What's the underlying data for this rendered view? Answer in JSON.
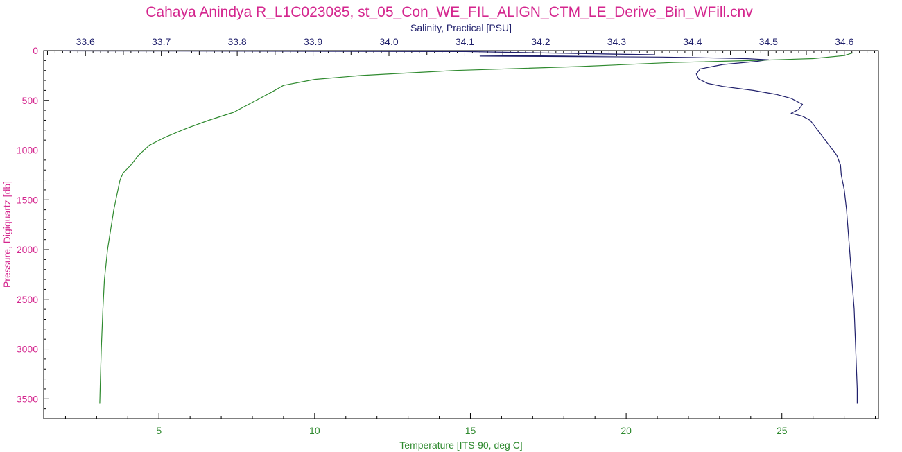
{
  "chart_data": {
    "type": "line",
    "title": "Cahaya Anindya R_L1C023085, st_05_Con_WE_FIL_ALIGN_CTM_LE_Derive_Bin_WFill.cnv",
    "colors": {
      "title": "#d4268e",
      "pressure": "#d4268e",
      "salinity": "#1f1f6b",
      "temperature": "#2f8a2f",
      "axis": "#000000"
    },
    "y_axis": {
      "label": "Pressure, Digiquartz [db]",
      "range": [
        0,
        3700
      ],
      "reversed": true,
      "ticks": [
        0,
        500,
        1000,
        1500,
        2000,
        2500,
        3000,
        3500
      ],
      "tick_labels": [
        "0",
        "500",
        "1000",
        "1500",
        "2000",
        "2500",
        "3000",
        "3500"
      ]
    },
    "x_top": {
      "label": "Salinity, Practical [PSU]",
      "range": [
        33.545,
        34.645
      ],
      "ticks": [
        33.6,
        33.7,
        33.8,
        33.9,
        34.0,
        34.1,
        34.2,
        34.3,
        34.4,
        34.5,
        34.6
      ],
      "tick_labels": [
        "33.6",
        "33.7",
        "33.8",
        "33.9",
        "34.0",
        "34.1",
        "34.2",
        "34.3",
        "34.4",
        "34.5",
        "34.6"
      ]
    },
    "x_bottom": {
      "label": "Temperature [ITS-90, deg C]",
      "range": [
        1.3,
        28.1
      ],
      "ticks": [
        5,
        10,
        15,
        20,
        25
      ],
      "tick_labels": [
        "5",
        "10",
        "15",
        "20",
        "25"
      ]
    },
    "grid": false,
    "series": [
      {
        "axis": "x_top",
        "points": [
          [
            33.57,
            3
          ],
          [
            34.1,
            10
          ],
          [
            34.18,
            20
          ],
          [
            34.35,
            42
          ],
          [
            34.12,
            55
          ],
          [
            34.25,
            60
          ],
          [
            34.36,
            65
          ],
          [
            34.4,
            70
          ],
          [
            34.47,
            80
          ],
          [
            34.5,
            92
          ],
          [
            34.485,
            108
          ],
          [
            34.44,
            140
          ],
          [
            34.41,
            185
          ],
          [
            34.405,
            235
          ],
          [
            34.408,
            285
          ],
          [
            34.42,
            330
          ],
          [
            34.44,
            360
          ],
          [
            34.48,
            400
          ],
          [
            34.51,
            440
          ],
          [
            34.53,
            480
          ],
          [
            34.545,
            540
          ],
          [
            34.54,
            590
          ],
          [
            34.53,
            630
          ],
          [
            34.545,
            660
          ],
          [
            34.555,
            700
          ],
          [
            34.565,
            800
          ],
          [
            34.575,
            900
          ],
          [
            34.59,
            1050
          ],
          [
            34.595,
            1150
          ],
          [
            34.596,
            1250
          ],
          [
            34.6,
            1400
          ],
          [
            34.603,
            1600
          ],
          [
            34.605,
            1800
          ],
          [
            34.607,
            2000
          ],
          [
            34.609,
            2200
          ],
          [
            34.611,
            2400
          ],
          [
            34.613,
            2600
          ],
          [
            34.614,
            2800
          ],
          [
            34.615,
            3000
          ],
          [
            34.616,
            3200
          ],
          [
            34.617,
            3400
          ],
          [
            34.617,
            3550
          ]
        ]
      },
      {
        "axis": "x_bottom",
        "points": [
          [
            27.3,
            20
          ],
          [
            27.0,
            50
          ],
          [
            26.0,
            80
          ],
          [
            24.0,
            100
          ],
          [
            21.5,
            120
          ],
          [
            18.5,
            160
          ],
          [
            14.5,
            200
          ],
          [
            11.5,
            250
          ],
          [
            10.0,
            290
          ],
          [
            9.0,
            350
          ],
          [
            8.6,
            420
          ],
          [
            8.0,
            520
          ],
          [
            7.4,
            620
          ],
          [
            6.6,
            700
          ],
          [
            5.9,
            780
          ],
          [
            5.2,
            870
          ],
          [
            4.7,
            950
          ],
          [
            4.35,
            1050
          ],
          [
            4.1,
            1150
          ],
          [
            3.85,
            1230
          ],
          [
            3.75,
            1300
          ],
          [
            3.65,
            1450
          ],
          [
            3.55,
            1600
          ],
          [
            3.45,
            1800
          ],
          [
            3.35,
            2000
          ],
          [
            3.25,
            2300
          ],
          [
            3.2,
            2600
          ],
          [
            3.15,
            3000
          ],
          [
            3.12,
            3300
          ],
          [
            3.1,
            3550
          ]
        ]
      }
    ]
  }
}
